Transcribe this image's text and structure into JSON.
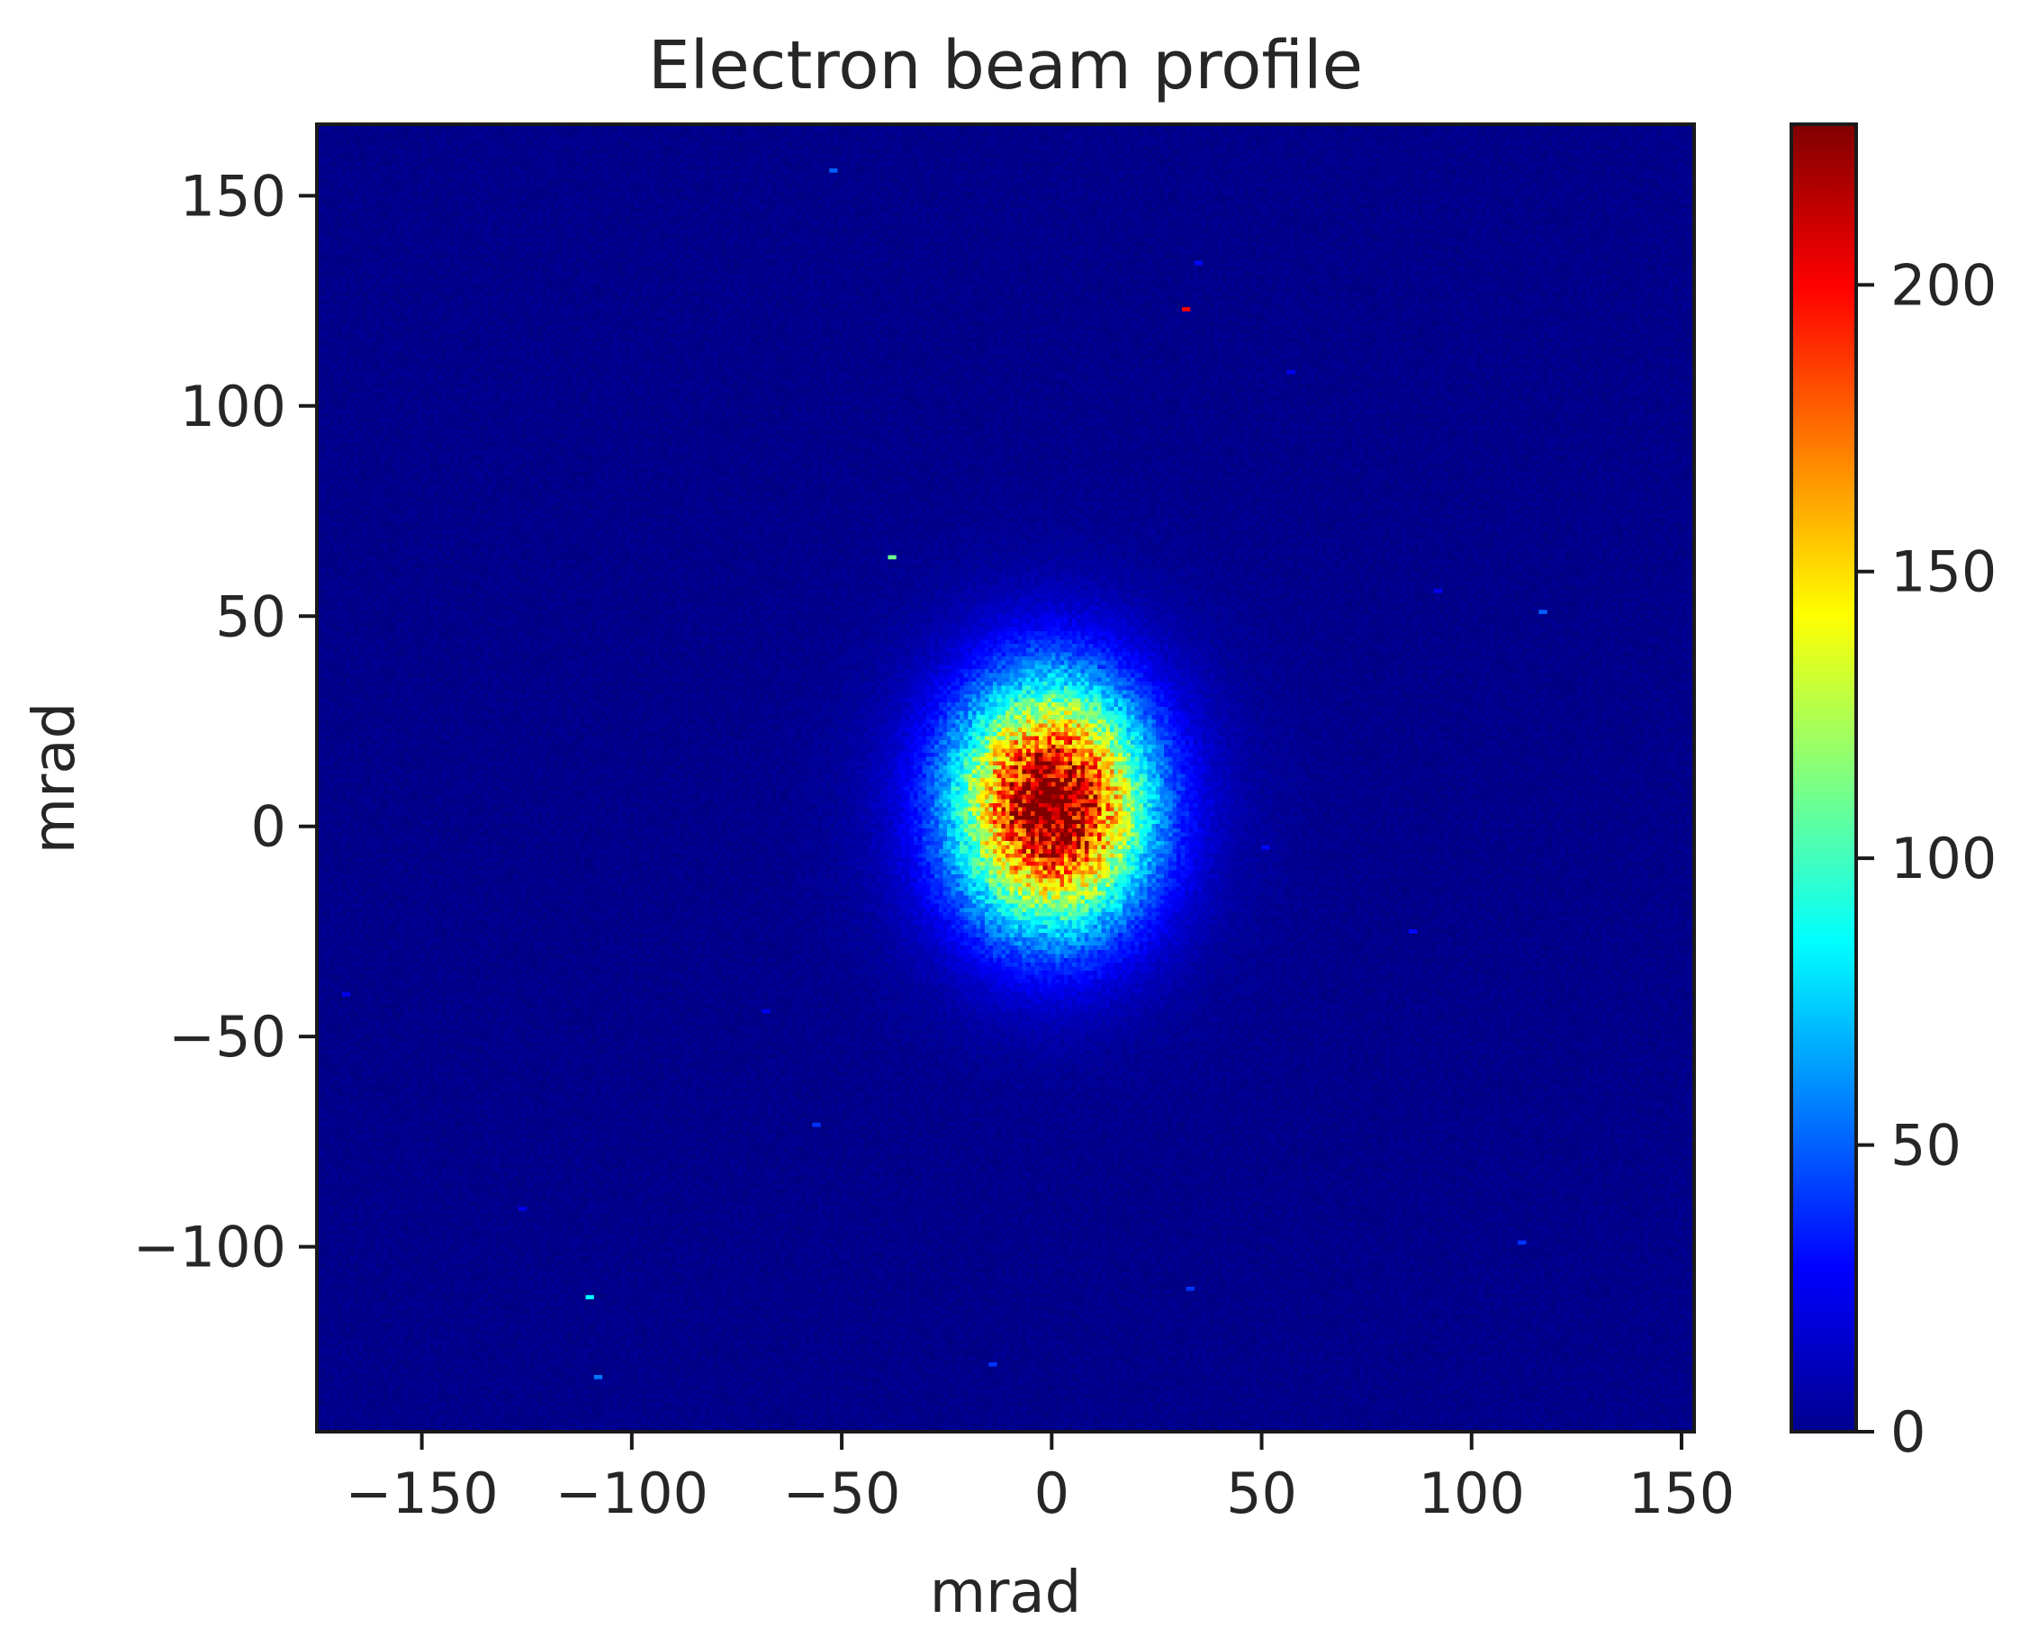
{
  "chart_data": {
    "type": "heatmap",
    "title": "Electron beam profile",
    "xlabel": "mrad",
    "ylabel": "mrad",
    "xlim": [
      -175,
      153
    ],
    "ylim": [
      -144,
      167
    ],
    "xticks": [
      -150,
      -100,
      -50,
      0,
      50,
      100,
      150
    ],
    "xtick_labels": [
      "−150",
      "−100",
      "−50",
      "0",
      "50",
      "100",
      "150"
    ],
    "yticks": [
      -100,
      -50,
      0,
      50,
      100,
      150
    ],
    "ytick_labels": [
      "−100",
      "−50",
      "0",
      "50",
      "100",
      "150"
    ],
    "colormap": "jet",
    "background_color": "#00008b",
    "colorbar": {
      "vmin": 0,
      "vmax": 228,
      "ticks": [
        0,
        50,
        100,
        150,
        200
      ],
      "tick_labels": [
        "0",
        "50",
        "100",
        "150",
        "200"
      ]
    },
    "beam": {
      "peak_value": 215,
      "center": [
        0,
        5
      ],
      "sigma_x": 15,
      "sigma_y": 19,
      "background_value": 5
    },
    "hot_pixels": [
      {
        "x": 32,
        "y": 123,
        "value": 200
      },
      {
        "x": -38,
        "y": 64,
        "value": 110
      },
      {
        "x": 117,
        "y": 51,
        "value": 50
      },
      {
        "x": -52,
        "y": 156,
        "value": 50
      },
      {
        "x": -110,
        "y": -112,
        "value": 85
      },
      {
        "x": -56,
        "y": -71,
        "value": 40
      },
      {
        "x": 33,
        "y": -110,
        "value": 40
      },
      {
        "x": 112,
        "y": -99,
        "value": 40
      },
      {
        "x": -14,
        "y": -128,
        "value": 40
      },
      {
        "x": -108,
        "y": -131,
        "value": 55
      },
      {
        "x": 86,
        "y": -25,
        "value": 30
      },
      {
        "x": 51,
        "y": -5,
        "value": 30
      },
      {
        "x": -168,
        "y": -40,
        "value": 25
      },
      {
        "x": 92,
        "y": 56,
        "value": 25
      },
      {
        "x": 35,
        "y": 134,
        "value": 30
      },
      {
        "x": 57,
        "y": 108,
        "value": 25
      },
      {
        "x": -68,
        "y": -44,
        "value": 25
      },
      {
        "x": -126,
        "y": -91,
        "value": 25
      }
    ]
  }
}
